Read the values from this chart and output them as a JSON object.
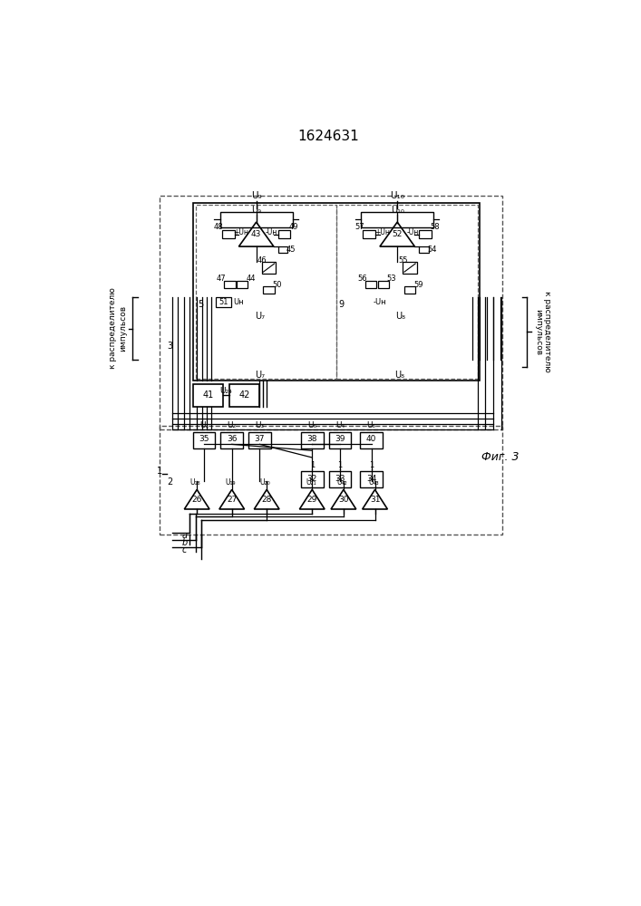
{
  "title": "1624631",
  "fig_label": "Фиг. 3",
  "bg_color": "#ffffff",
  "line_color": "#000000",
  "left_label": "к распределителю импульсов",
  "right_label": "к распределителю импульсов"
}
